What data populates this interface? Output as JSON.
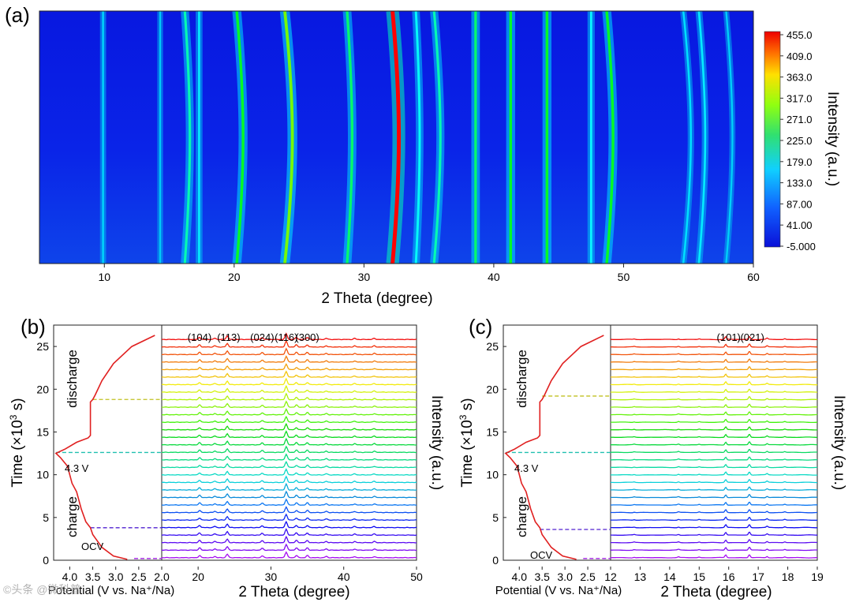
{
  "panel_a": {
    "label": "(a)",
    "chart_data": {
      "type": "heatmap",
      "xlabel": "2 Theta (degree)",
      "xlim": [
        5,
        60
      ],
      "xticks": [
        "10",
        "20",
        "30",
        "40",
        "50",
        "60"
      ],
      "colorbar": {
        "title": "Intensity (a.u.)",
        "ticks": [
          "455.0",
          "409.0",
          "363.0",
          "317.0",
          "271.0",
          "225.0",
          "179.0",
          "133.0",
          "87.00",
          "41.00",
          "-5.000"
        ],
        "range": [
          -5,
          455
        ]
      },
      "peaks": [
        {
          "x": 9.9,
          "i": 0.22,
          "shift": 0
        },
        {
          "x": 14.3,
          "i": 0.18,
          "shift": 0
        },
        {
          "x": 16.2,
          "i": 0.45,
          "shift": 0.4
        },
        {
          "x": 17.3,
          "i": 0.3,
          "shift": 0
        },
        {
          "x": 20.2,
          "i": 0.55,
          "shift": 0.5
        },
        {
          "x": 23.9,
          "i": 0.65,
          "shift": 0.6
        },
        {
          "x": 28.7,
          "i": 0.5,
          "shift": 0.4
        },
        {
          "x": 32.2,
          "i": 1.0,
          "shift": 0.5
        },
        {
          "x": 34.0,
          "i": 0.4,
          "shift": 0.3
        },
        {
          "x": 35.4,
          "i": 0.45,
          "shift": 0.5
        },
        {
          "x": 38.6,
          "i": 0.5,
          "shift": 0
        },
        {
          "x": 41.3,
          "i": 0.55,
          "shift": 0
        },
        {
          "x": 44.1,
          "i": 0.55,
          "shift": 0
        },
        {
          "x": 47.5,
          "i": 0.35,
          "shift": 0
        },
        {
          "x": 48.7,
          "i": 0.55,
          "shift": 0.5
        },
        {
          "x": 54.6,
          "i": 0.25,
          "shift": 0.6
        },
        {
          "x": 55.8,
          "i": 0.3,
          "shift": 0.5
        },
        {
          "x": 57.9,
          "i": 0.2,
          "shift": 0.5
        }
      ]
    }
  },
  "panel_b": {
    "label": "(b)",
    "chart_data": {
      "type": "line",
      "ylabel": "Time (×10",
      "ylabel_sup": "3",
      "ylabel_end": " s)",
      "ylim": [
        0,
        27.5
      ],
      "yticks": [
        "0",
        "5",
        "10",
        "15",
        "20",
        "25"
      ],
      "potential_xlabel": "Potential (V vs. Na⁺/Na)",
      "potential_ticks": [
        "4.0",
        "3.5",
        "3.0",
        "2.5",
        "2.0"
      ],
      "potential_xlim": [
        4.35,
        2.0
      ],
      "xlabel": "2 Theta (degree)",
      "xlim": [
        15,
        50
      ],
      "xticks": [
        "20",
        "30",
        "40",
        "50"
      ],
      "right_ylabel": "Intensity (a.u.)",
      "annotations": [
        "discharge",
        "charge",
        "4.3 V",
        "OCV"
      ],
      "hkl_labels": [
        "(104)",
        "(113)",
        "(024)",
        "(116)",
        "(300)"
      ],
      "hkl_positions": [
        20.2,
        24.2,
        28.8,
        32.1,
        35.0
      ],
      "voltage_curve": [
        {
          "t": 0.1,
          "v": 2.75
        },
        {
          "t": 0.5,
          "v": 3.05
        },
        {
          "t": 1.5,
          "v": 3.3
        },
        {
          "t": 3.0,
          "v": 3.5
        },
        {
          "t": 3.8,
          "v": 3.55
        },
        {
          "t": 4.5,
          "v": 3.65
        },
        {
          "t": 6.0,
          "v": 3.75
        },
        {
          "t": 8.0,
          "v": 3.85
        },
        {
          "t": 9.0,
          "v": 3.95
        },
        {
          "t": 10.0,
          "v": 4.0
        },
        {
          "t": 11.0,
          "v": 4.05
        },
        {
          "t": 12.0,
          "v": 4.2
        },
        {
          "t": 12.5,
          "v": 4.3
        },
        {
          "t": 13.0,
          "v": 4.1
        },
        {
          "t": 13.8,
          "v": 3.85
        },
        {
          "t": 14.3,
          "v": 3.6
        },
        {
          "t": 14.6,
          "v": 3.55
        },
        {
          "t": 16.0,
          "v": 3.55
        },
        {
          "t": 18.5,
          "v": 3.55
        },
        {
          "t": 18.8,
          "v": 3.5
        },
        {
          "t": 19.3,
          "v": 3.45
        },
        {
          "t": 21.0,
          "v": 3.3
        },
        {
          "t": 23.0,
          "v": 3.05
        },
        {
          "t": 25.0,
          "v": 2.65
        },
        {
          "t": 26.3,
          "v": 2.15
        }
      ],
      "dashed_markers": [
        {
          "t": 0.2,
          "v": 2.6,
          "color": "#a020e0"
        },
        {
          "t": 3.8,
          "v": 3.55,
          "color": "#5020d0"
        },
        {
          "t": 12.6,
          "v": 4.3,
          "color": "#20c0b0"
        },
        {
          "t": 18.8,
          "v": 3.5,
          "color": "#c0c020"
        }
      ],
      "patterns": {
        "count": 30,
        "t_start": 0.3,
        "t_step": 0.88,
        "amp": 0.75,
        "peaks": [
          {
            "x": 20.2,
            "i": 0.35
          },
          {
            "x": 22.3,
            "i": 0.2
          },
          {
            "x": 24.0,
            "i": 0.55
          },
          {
            "x": 28.8,
            "i": 0.3
          },
          {
            "x": 32.1,
            "i": 0.9
          },
          {
            "x": 33.5,
            "i": 0.35
          },
          {
            "x": 35.0,
            "i": 0.35
          },
          {
            "x": 37.6,
            "i": 0.2
          },
          {
            "x": 41.5,
            "i": 0.18
          },
          {
            "x": 44.2,
            "i": 0.18
          }
        ]
      }
    }
  },
  "panel_c": {
    "label": "(c)",
    "chart_data": {
      "type": "line",
      "ylabel": "Time (×10",
      "ylabel_sup": "3",
      "ylabel_end": " s)",
      "ylim": [
        0,
        27.5
      ],
      "yticks": [
        "0",
        "5",
        "10",
        "15",
        "20",
        "25"
      ],
      "potential_xlabel": "Potential (V vs. Na⁺/Na)",
      "potential_ticks": [
        "4.0",
        "3.5",
        "3.0",
        "2.5"
      ],
      "potential_xlim": [
        4.35,
        2.0
      ],
      "xlabel": "2 Theta (degree)",
      "xlim": [
        12,
        19
      ],
      "xticks": [
        "12",
        "13",
        "14",
        "15",
        "16",
        "17",
        "18",
        "19"
      ],
      "right_ylabel": "Intensity (a.u.)",
      "annotations": [
        "discharge",
        "charge",
        "4.3 V",
        "OCV"
      ],
      "hkl_labels": [
        "(101)",
        "(021)"
      ],
      "hkl_positions": [
        16.0,
        16.8
      ],
      "voltage_curve": [
        {
          "t": 0.1,
          "v": 2.75
        },
        {
          "t": 0.5,
          "v": 3.05
        },
        {
          "t": 1.5,
          "v": 3.3
        },
        {
          "t": 3.0,
          "v": 3.5
        },
        {
          "t": 3.8,
          "v": 3.55
        },
        {
          "t": 4.5,
          "v": 3.65
        },
        {
          "t": 6.0,
          "v": 3.75
        },
        {
          "t": 8.0,
          "v": 3.85
        },
        {
          "t": 9.0,
          "v": 3.95
        },
        {
          "t": 10.0,
          "v": 4.0
        },
        {
          "t": 11.0,
          "v": 4.05
        },
        {
          "t": 12.0,
          "v": 4.2
        },
        {
          "t": 12.5,
          "v": 4.3
        },
        {
          "t": 13.0,
          "v": 4.1
        },
        {
          "t": 13.8,
          "v": 3.85
        },
        {
          "t": 14.3,
          "v": 3.6
        },
        {
          "t": 14.6,
          "v": 3.55
        },
        {
          "t": 16.0,
          "v": 3.55
        },
        {
          "t": 18.5,
          "v": 3.55
        },
        {
          "t": 18.8,
          "v": 3.5
        },
        {
          "t": 19.3,
          "v": 3.45
        },
        {
          "t": 21.0,
          "v": 3.3
        },
        {
          "t": 23.0,
          "v": 3.05
        },
        {
          "t": 25.0,
          "v": 2.65
        },
        {
          "t": 26.3,
          "v": 2.15
        }
      ],
      "dashed_markers": [
        {
          "t": 0.2,
          "v": 2.6,
          "color": "#a020e0"
        },
        {
          "t": 3.6,
          "v": 3.55,
          "color": "#5020d0"
        },
        {
          "t": 12.6,
          "v": 4.3,
          "color": "#20c0b0"
        },
        {
          "t": 19.2,
          "v": 3.5,
          "color": "#c0c020"
        }
      ],
      "patterns": {
        "count": 30,
        "t_start": 0.3,
        "t_step": 0.88,
        "amp": 0.7,
        "peaks": [
          {
            "x": 12.8,
            "i": 0.08
          },
          {
            "x": 14.3,
            "i": 0.12
          },
          {
            "x": 15.0,
            "i": 0.1
          },
          {
            "x": 15.9,
            "i": 0.45
          },
          {
            "x": 16.7,
            "i": 0.5
          },
          {
            "x": 17.3,
            "i": 0.2
          },
          {
            "x": 17.9,
            "i": 0.12
          }
        ]
      }
    }
  },
  "watermark": "©头条 @微科普"
}
